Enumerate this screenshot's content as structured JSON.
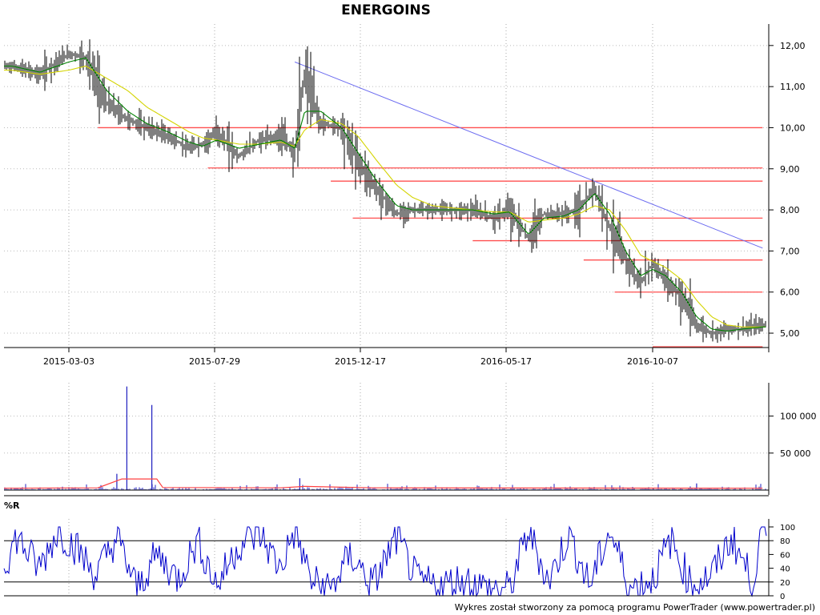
{
  "page": {
    "footer": "Wykres został stworzony za pomocą programu PowerTrader (www.powertrader.pl)"
  },
  "chart_data": [
    {
      "type": "line",
      "subtype": "ohlc-bars",
      "title": "ENERGOINS",
      "x_tick_labels": [
        "2015-03-03",
        "2015-07-29",
        "2015-12-17",
        "2016-05-17",
        "2016-10-07"
      ],
      "y_tick_labels": [
        "12,00",
        "11,00",
        "10,00",
        "9,00",
        "8,00",
        "7,00",
        "6,00",
        "5,00"
      ],
      "ylim": [
        4.65,
        12.25
      ],
      "grid": true,
      "series": [
        {
          "kind": "close",
          "x": [
            "2014-12-01",
            "2015-01-05",
            "2015-02-02",
            "2015-03-03",
            "2015-03-20",
            "2015-04-10",
            "2015-05-01",
            "2015-05-20",
            "2015-06-10",
            "2015-07-01",
            "2015-07-15",
            "2015-07-29",
            "2015-08-20",
            "2015-09-10",
            "2015-10-01",
            "2015-10-15",
            "2015-10-25",
            "2015-11-10",
            "2015-12-01",
            "2015-12-17",
            "2016-01-05",
            "2016-01-25",
            "2016-02-10",
            "2016-03-01",
            "2016-03-20",
            "2016-04-10",
            "2016-05-01",
            "2016-05-17",
            "2016-06-05",
            "2016-06-20",
            "2016-07-10",
            "2016-07-25",
            "2016-08-10",
            "2016-08-25",
            "2016-09-10",
            "2016-09-25",
            "2016-10-07",
            "2016-10-20",
            "2016-11-05",
            "2016-11-20",
            "2016-12-05",
            "2016-12-20",
            "2017-01-05",
            "2017-01-25"
          ],
          "y": [
            11.5,
            11.5,
            11.3,
            11.8,
            11.7,
            10.6,
            10.2,
            10.0,
            9.8,
            9.5,
            9.6,
            9.9,
            9.3,
            9.7,
            9.8,
            9.4,
            11.3,
            10.1,
            10.0,
            9.2,
            8.5,
            7.9,
            8.0,
            8.0,
            8.0,
            8.0,
            7.8,
            8.0,
            7.3,
            7.9,
            7.9,
            8.0,
            8.5,
            7.6,
            6.8,
            6.2,
            6.7,
            6.3,
            5.9,
            5.2,
            5.0,
            5.1,
            5.1,
            5.2
          ]
        },
        {
          "kind": "moving-average-short",
          "color": "#008000",
          "x": [
            "2014-12-01",
            "2015-01-05",
            "2015-02-02",
            "2015-03-03",
            "2015-03-20",
            "2015-04-10",
            "2015-05-01",
            "2015-05-20",
            "2015-06-10",
            "2015-07-01",
            "2015-07-15",
            "2015-07-29",
            "2015-08-20",
            "2015-09-10",
            "2015-10-01",
            "2015-10-15",
            "2015-10-25",
            "2015-11-10",
            "2015-12-01",
            "2015-12-17",
            "2016-01-05",
            "2016-01-25",
            "2016-02-10",
            "2016-03-01",
            "2016-03-20",
            "2016-04-10",
            "2016-05-01",
            "2016-05-17",
            "2016-06-05",
            "2016-06-20",
            "2016-07-10",
            "2016-07-25",
            "2016-08-10",
            "2016-08-25",
            "2016-09-10",
            "2016-09-25",
            "2016-10-07",
            "2016-10-20",
            "2016-11-05",
            "2016-11-20",
            "2016-12-05",
            "2016-12-20",
            "2017-01-05",
            "2017-01-25"
          ],
          "y": [
            11.5,
            11.5,
            11.35,
            11.6,
            11.7,
            10.9,
            10.4,
            10.1,
            9.9,
            9.65,
            9.55,
            9.7,
            9.5,
            9.6,
            9.7,
            9.5,
            10.4,
            10.4,
            10.0,
            9.4,
            8.7,
            8.1,
            8.0,
            8.0,
            8.0,
            8.0,
            7.9,
            7.95,
            7.4,
            7.8,
            7.85,
            8.0,
            8.4,
            7.9,
            7.0,
            6.4,
            6.55,
            6.4,
            6.0,
            5.4,
            5.1,
            5.05,
            5.1,
            5.15
          ]
        },
        {
          "kind": "moving-average-long",
          "color": "#d4d400",
          "x": [
            "2014-12-01",
            "2015-01-05",
            "2015-02-02",
            "2015-03-03",
            "2015-03-20",
            "2015-04-10",
            "2015-05-01",
            "2015-05-20",
            "2015-06-10",
            "2015-07-01",
            "2015-07-15",
            "2015-07-29",
            "2015-08-20",
            "2015-09-10",
            "2015-10-01",
            "2015-10-15",
            "2015-10-25",
            "2015-11-10",
            "2015-12-01",
            "2015-12-17",
            "2016-01-05",
            "2016-01-25",
            "2016-02-10",
            "2016-03-01",
            "2016-03-20",
            "2016-04-10",
            "2016-05-01",
            "2016-05-17",
            "2016-06-05",
            "2016-06-20",
            "2016-07-10",
            "2016-07-25",
            "2016-08-10",
            "2016-08-25",
            "2016-09-10",
            "2016-09-25",
            "2016-10-07",
            "2016-10-20",
            "2016-11-05",
            "2016-11-20",
            "2016-12-05",
            "2016-12-20",
            "2017-01-05",
            "2017-01-25"
          ],
          "y": [
            11.4,
            11.4,
            11.3,
            11.4,
            11.5,
            11.2,
            10.9,
            10.5,
            10.2,
            9.9,
            9.75,
            9.7,
            9.6,
            9.6,
            9.65,
            9.55,
            9.95,
            10.2,
            10.1,
            9.8,
            9.2,
            8.6,
            8.3,
            8.1,
            8.05,
            8.0,
            7.95,
            7.95,
            7.7,
            7.75,
            7.8,
            7.9,
            8.1,
            8.0,
            7.5,
            6.9,
            6.75,
            6.6,
            6.3,
            5.8,
            5.4,
            5.2,
            5.15,
            5.15
          ]
        }
      ],
      "support_resistance_levels": [
        {
          "y": 10.0,
          "from": "2015-04-01",
          "to": "2017-01-25"
        },
        {
          "y": 9.02,
          "from": "2015-07-20",
          "to": "2017-01-25"
        },
        {
          "y": 8.7,
          "from": "2015-11-20",
          "to": "2017-01-25"
        },
        {
          "y": 7.8,
          "from": "2015-12-12",
          "to": "2017-01-25"
        },
        {
          "y": 7.25,
          "from": "2016-04-10",
          "to": "2017-01-25"
        },
        {
          "y": 6.78,
          "from": "2016-07-30",
          "to": "2017-01-25"
        },
        {
          "y": 6.0,
          "from": "2016-08-30",
          "to": "2017-01-25"
        },
        {
          "y": 4.67,
          "from": "2016-10-07",
          "to": "2017-01-25"
        }
      ],
      "trend_line": {
        "color": "#6a6af0",
        "from": {
          "x": "2015-10-15",
          "y": 11.6
        },
        "to": {
          "x": "2017-01-25",
          "y": 7.07
        }
      }
    },
    {
      "type": "bar",
      "subtype": "volume",
      "y_tick_labels": [
        "100 000",
        "50 000"
      ],
      "ylim": [
        0,
        145000
      ],
      "grid": true,
      "spikes": [
        {
          "x": "2015-04-20",
          "value": 22000
        },
        {
          "x": "2015-04-30",
          "value": 140000
        },
        {
          "x": "2015-05-25",
          "value": 115000
        },
        {
          "x": "2015-10-20",
          "value": 16000
        },
        {
          "x": "2016-11-20",
          "value": 9000
        }
      ],
      "average_line": {
        "color": "#ff4040",
        "x": [
          "2014-12-01",
          "2015-04-01",
          "2015-04-25",
          "2015-05-30",
          "2015-06-05",
          "2015-10-01",
          "2015-10-25",
          "2016-01-01",
          "2017-01-25"
        ],
        "y": [
          2500,
          3000,
          15000,
          15000,
          3500,
          3000,
          5000,
          3000,
          2500
        ]
      }
    },
    {
      "type": "line",
      "subtype": "indicator",
      "title": "%R",
      "y_tick_labels": [
        "100",
        "80",
        "60",
        "40",
        "20",
        "0"
      ],
      "ylim": [
        0,
        100
      ],
      "reference_levels": [
        80,
        20
      ],
      "series": [
        {
          "color": "#0000cc",
          "x": [
            "2014-12-01",
            "2014-12-20",
            "2015-01-10",
            "2015-02-01",
            "2015-02-20",
            "2015-03-10",
            "2015-03-30",
            "2015-04-20",
            "2015-05-10",
            "2015-05-30",
            "2015-06-20",
            "2015-07-10",
            "2015-07-29",
            "2015-08-20",
            "2015-09-10",
            "2015-09-30",
            "2015-10-15",
            "2015-11-01",
            "2015-11-20",
            "2015-12-10",
            "2016-01-01",
            "2016-01-25",
            "2016-02-15",
            "2016-03-10",
            "2016-04-01",
            "2016-04-25",
            "2016-05-17",
            "2016-06-05",
            "2016-06-25",
            "2016-07-15",
            "2016-08-05",
            "2016-08-25",
            "2016-09-15",
            "2016-10-07",
            "2016-10-25",
            "2016-11-15",
            "2016-12-05",
            "2016-12-25",
            "2017-01-15",
            "2017-01-25"
          ],
          "y": [
            60,
            20,
            85,
            40,
            95,
            70,
            30,
            85,
            10,
            60,
            25,
            80,
            15,
            75,
            90,
            40,
            95,
            20,
            10,
            60,
            15,
            85,
            20,
            15,
            25,
            10,
            10,
            95,
            20,
            90,
            15,
            95,
            10,
            25,
            80,
            15,
            30,
            85,
            20,
            95
          ]
        }
      ]
    }
  ]
}
